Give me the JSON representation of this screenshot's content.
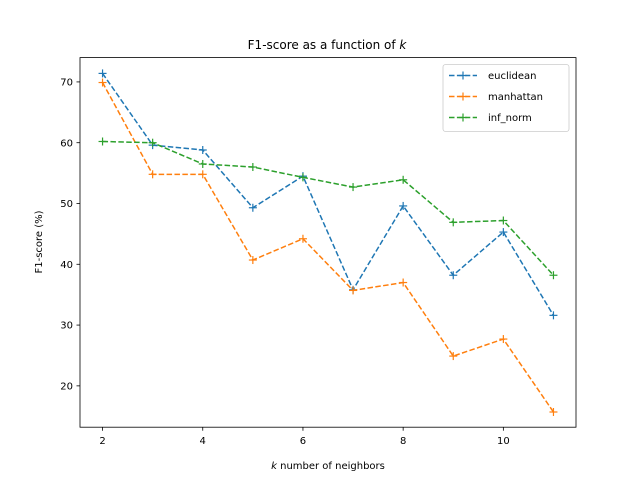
{
  "chart_data": {
    "type": "line",
    "title_main": "F1-score as a function of ",
    "title_var": "k",
    "xlabel_var": "k",
    "xlabel_rest": " number of neighbors",
    "ylabel": "F1-score (%)",
    "x": [
      2,
      3,
      4,
      5,
      6,
      7,
      8,
      9,
      10,
      11
    ],
    "xticks": [
      "2",
      "4",
      "6",
      "8",
      "10"
    ],
    "yticks": [
      "20",
      "30",
      "40",
      "50",
      "60",
      "70"
    ],
    "xlim": [
      1.55,
      11.45
    ],
    "ylim": [
      13.2,
      74.0
    ],
    "grid": false,
    "legend_position": "top-right",
    "series": [
      {
        "name": "euclidean",
        "color": "#1f77b4",
        "values": [
          71.4,
          59.6,
          58.8,
          49.3,
          54.5,
          35.8,
          49.6,
          38.2,
          45.3,
          31.6
        ]
      },
      {
        "name": "manhattan",
        "color": "#ff7f0e",
        "values": [
          69.9,
          54.8,
          54.8,
          40.7,
          44.2,
          35.7,
          37.0,
          24.9,
          27.7,
          15.7
        ]
      },
      {
        "name": "inf_norm",
        "color": "#2ca02c",
        "values": [
          60.2,
          60.0,
          56.5,
          56.0,
          54.3,
          52.7,
          53.9,
          46.9,
          47.2,
          38.2
        ]
      }
    ]
  }
}
